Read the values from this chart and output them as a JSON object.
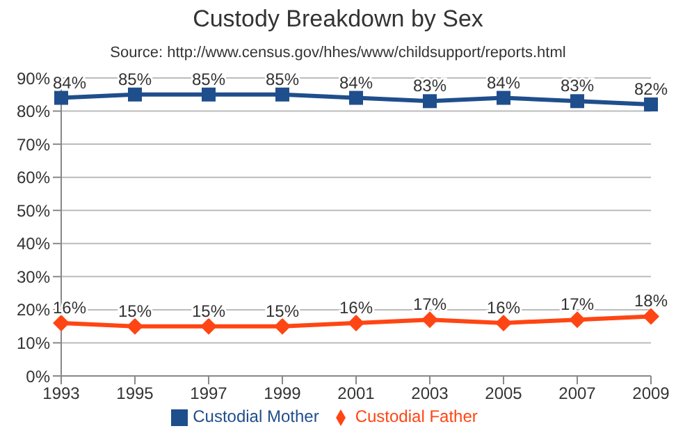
{
  "chart_data": {
    "type": "line",
    "title": "Custody Breakdown by Sex",
    "subtitle": "Source:  http://www.census.gov/hhes/www/childsupport/reports.html",
    "categories": [
      "1993",
      "1995",
      "1997",
      "1999",
      "2001",
      "2003",
      "2005",
      "2007",
      "2009"
    ],
    "series": [
      {
        "name": "Custodial Mother",
        "color": "#1f4e8c",
        "marker": "square",
        "values": [
          84,
          85,
          85,
          85,
          84,
          83,
          84,
          83,
          82
        ],
        "value_labels": [
          "84%",
          "85%",
          "85%",
          "85%",
          "84%",
          "83%",
          "84%",
          "83%",
          "82%"
        ]
      },
      {
        "name": "Custodial Father",
        "color": "#ff4514",
        "marker": "diamond",
        "values": [
          16,
          15,
          15,
          15,
          16,
          17,
          16,
          17,
          18
        ],
        "value_labels": [
          "16%",
          "15%",
          "15%",
          "15%",
          "16%",
          "17%",
          "16%",
          "17%",
          "18%"
        ]
      }
    ],
    "ylim": [
      0,
      90
    ],
    "yticks": [
      {
        "value": 0,
        "label": "0%"
      },
      {
        "value": 10,
        "label": "10%"
      },
      {
        "value": 20,
        "label": "20%"
      },
      {
        "value": 30,
        "label": "30%"
      },
      {
        "value": 40,
        "label": "40%"
      },
      {
        "value": 50,
        "label": "50%"
      },
      {
        "value": 60,
        "label": "60%"
      },
      {
        "value": 70,
        "label": "70%"
      },
      {
        "value": 80,
        "label": "80%"
      },
      {
        "value": 90,
        "label": "90%"
      }
    ],
    "grid": "y",
    "legend": "bottom",
    "line_style": "solid"
  }
}
